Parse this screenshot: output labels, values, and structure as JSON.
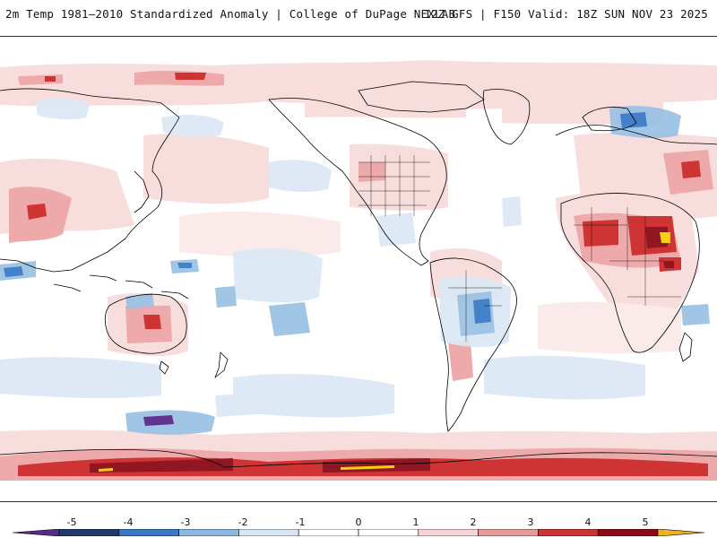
{
  "header": {
    "title_left": "2m Temp 1981–2010 Standardized Anomaly | College of DuPage NEXLAB",
    "title_right": "12Z GFS | F150 Valid: 18Z SUN NOV 23 2025"
  },
  "colorbar": {
    "ticks": [
      "-5",
      "-4",
      "-3",
      "-2",
      "-1",
      "0",
      "1",
      "2",
      "3",
      "4",
      "5"
    ],
    "colors": [
      "#5a2a8a",
      "#203a70",
      "#3a78c8",
      "#8ab8e0",
      "#d8e6f3",
      "#ffffff",
      "#ffffff",
      "#f7d4d4",
      "#e89a9a",
      "#cc3333",
      "#8b0a16",
      "#f0b020"
    ]
  },
  "map": {
    "ocean_color": "#ffffff",
    "warm_light": "#f8dcdc",
    "warm_mid": "#eea6a6",
    "warm_strong": "#cc2a2a",
    "warm_extreme": "#8b0a16",
    "cold_light": "#dce8f4",
    "cold_mid": "#9cc2e4",
    "cold_strong": "#3a7cc8",
    "highlight": "#f5d000"
  }
}
